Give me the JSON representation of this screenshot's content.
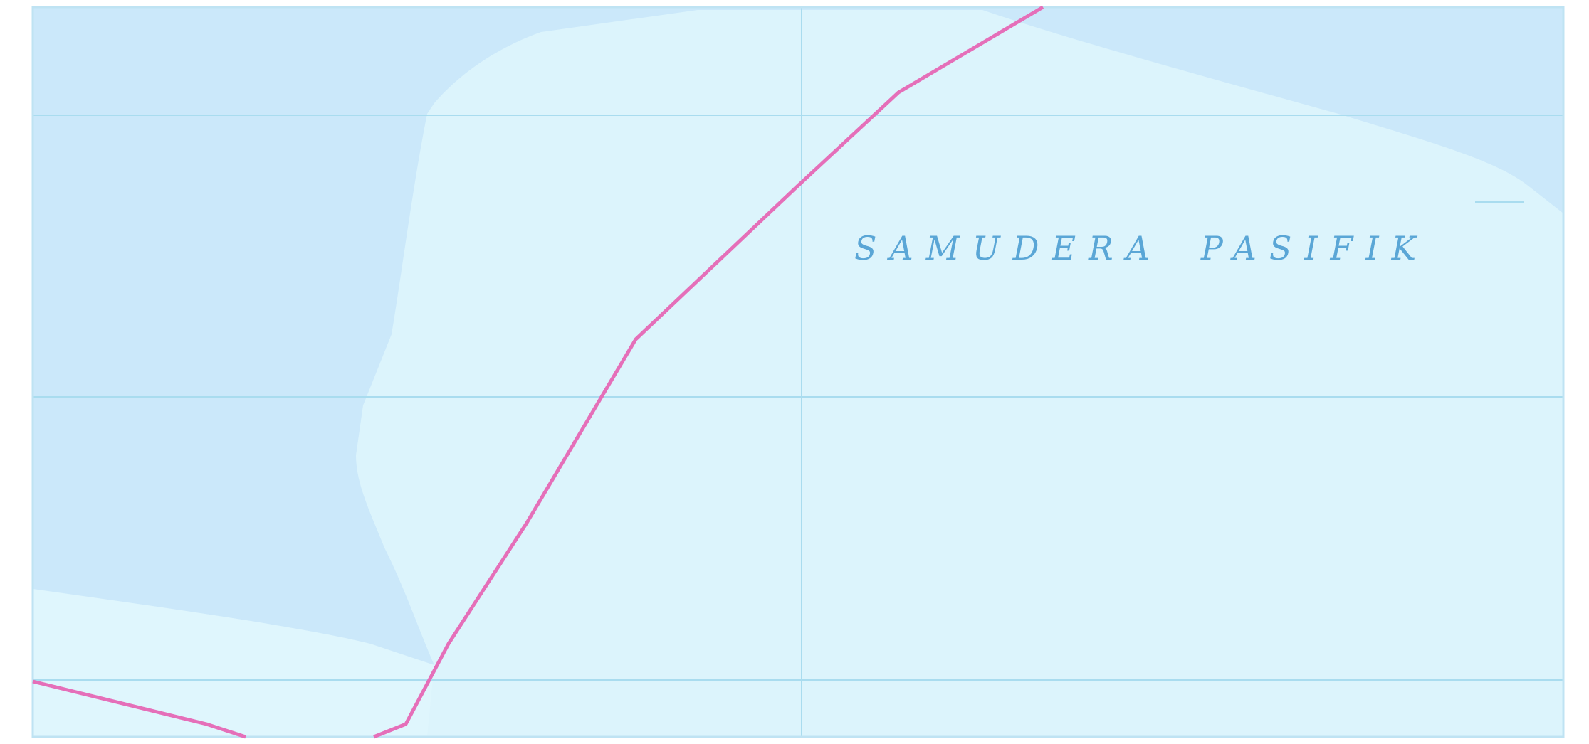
{
  "map": {
    "ocean_label": {
      "word1": "SAMUDERA",
      "word2": "PASIFIK"
    },
    "colors": {
      "deep_water": "#cbe8fa",
      "shallow_water": "#dcf4fc",
      "grid_line": "#a9dcef",
      "boundary_line": "#e56fb9",
      "frame": "#bfe3f3",
      "label": "#5aa6d6"
    },
    "elements": {
      "grid": "lat-long-grid",
      "boundary": "maritime-boundary-line",
      "zones": [
        "deep-water-zone",
        "shallow-water-zone"
      ]
    }
  }
}
